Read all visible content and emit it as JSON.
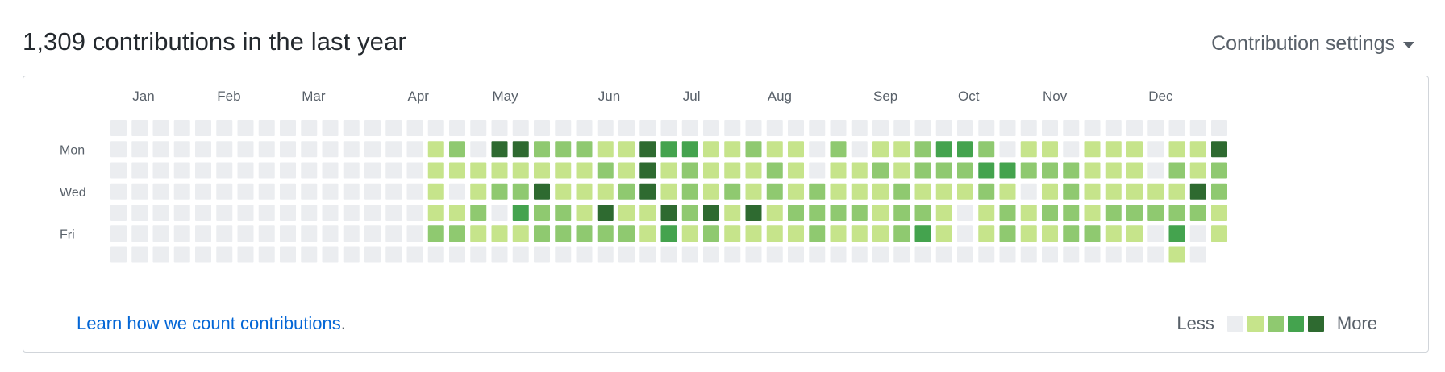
{
  "header": {
    "title": "1,309 contributions in the last year",
    "settings_label": "Contribution settings"
  },
  "graph": {
    "months": [
      "Jan",
      "Feb",
      "Mar",
      "Apr",
      "May",
      "Jun",
      "Jul",
      "Aug",
      "Sep",
      "Oct",
      "Nov",
      "Dec"
    ],
    "month_start_weeks": [
      1,
      5,
      9,
      14,
      18,
      23,
      27,
      31,
      36,
      40,
      44,
      49
    ],
    "day_labels": [
      "",
      "Mon",
      "",
      "Wed",
      "",
      "Fri",
      ""
    ],
    "colors": [
      "#ebedf0",
      "#c6e48b",
      "#8fc970",
      "#44a34e",
      "#2e6a30"
    ],
    "levels": [
      "00000000000000000000000000000000000000000000000000000",
      "00000000000000012044222114331121102011233201101110114",
      "00000000000000011111111214121112101121222332221110212",
      "00000000000000010122411124121212121112111210121111142",
      "00000000000000011203221411424141222212210121221222221",
      "00000000000000022111222221312111121112310121122110301",
      "0000000000000000000000000000000000000000000000000010"
    ]
  },
  "footer": {
    "learn_link": "Learn how we count contributions",
    "learn_suffix": ".",
    "legend_less": "Less",
    "legend_more": "More"
  }
}
